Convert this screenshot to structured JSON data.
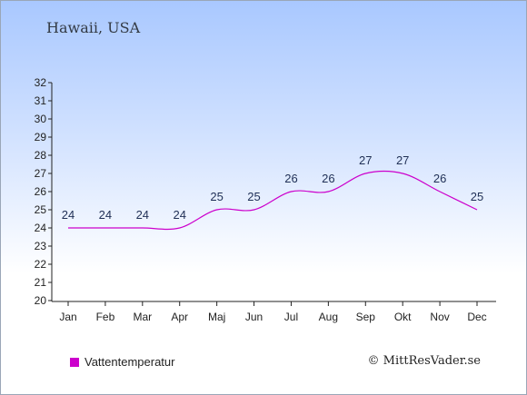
{
  "header": {
    "title": "Hawaii, USA"
  },
  "footer": {
    "credit": "© MittResVader.se"
  },
  "chart_data": {
    "type": "line",
    "categories": [
      "Jan",
      "Feb",
      "Mar",
      "Apr",
      "Maj",
      "Jun",
      "Jul",
      "Aug",
      "Sep",
      "Okt",
      "Nov",
      "Dec"
    ],
    "series": [
      {
        "name": "Vattentemperatur",
        "color": "#cc00cc",
        "values": [
          24,
          24,
          24,
          24,
          25,
          25,
          26,
          26,
          27,
          27,
          26,
          25
        ]
      }
    ],
    "ylim": [
      20,
      32
    ],
    "yticks": [
      20,
      21,
      22,
      23,
      24,
      25,
      26,
      27,
      28,
      29,
      30,
      31,
      32
    ],
    "legend_position": "bottom-left",
    "grid": false
  }
}
